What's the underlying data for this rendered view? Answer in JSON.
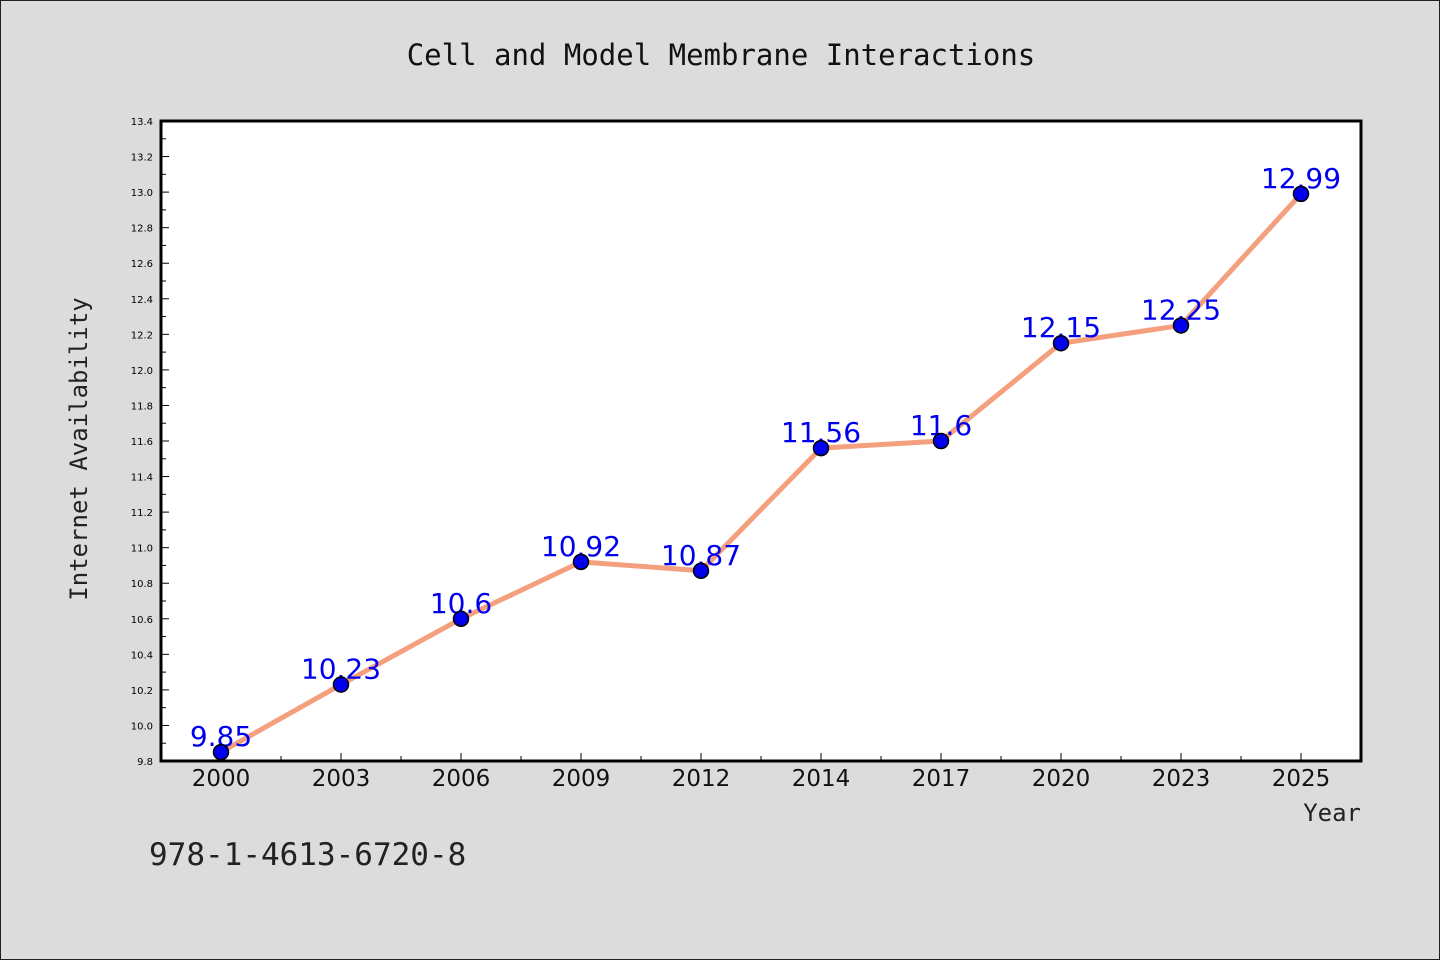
{
  "chart_data": {
    "type": "line",
    "title": "Cell and Model Membrane Interactions",
    "xlabel": "Year",
    "ylabel": "Internet Availability",
    "categories": [
      "2000",
      "2003",
      "2006",
      "2009",
      "2012",
      "2014",
      "2017",
      "2020",
      "2023",
      "2025"
    ],
    "series": [
      {
        "values": [
          9.85,
          10.23,
          10.6,
          10.92,
          10.87,
          11.56,
          11.6,
          12.15,
          12.25,
          12.99
        ],
        "data_labels": [
          "9.85",
          "10.23",
          "10.6",
          "10.92",
          "10.87",
          "11.56",
          "11.6",
          "12.15",
          "12.25",
          "12.99"
        ]
      }
    ],
    "ylim": [
      9.8,
      13.4
    ],
    "yticks": [
      "9.8",
      "10.0",
      "10.2",
      "10.4",
      "10.6",
      "10.8",
      "11.0",
      "11.2",
      "11.4",
      "11.6",
      "11.8",
      "12.0",
      "12.2",
      "12.4",
      "12.6",
      "12.8",
      "13.0",
      "13.2",
      "13.4"
    ],
    "grid": false,
    "colors": {
      "line": "#f4a07e",
      "marker": "#0000ee",
      "data_label": "#0000ee",
      "background": "#dcdcdc",
      "plot_background": "#ffffff"
    }
  },
  "footer": {
    "isbn": "978-1-4613-6720-8"
  }
}
